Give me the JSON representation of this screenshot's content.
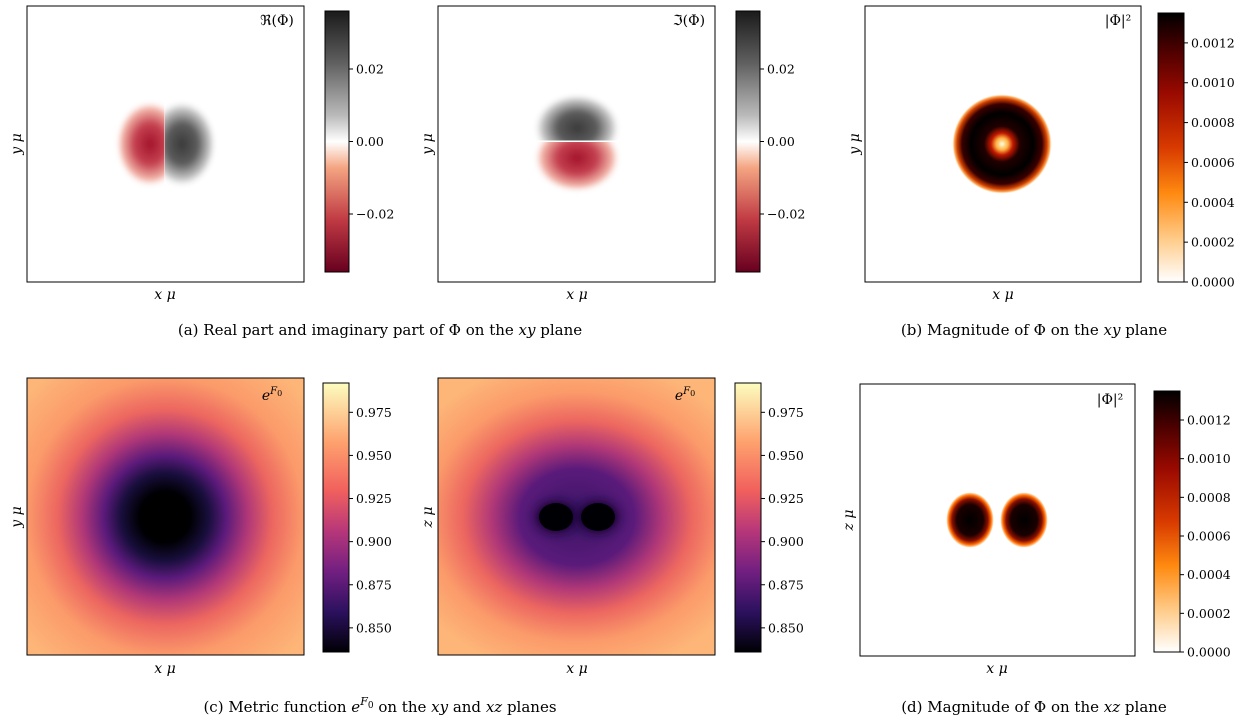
{
  "captions": {
    "a": "(a)  Real part and imaginary part of Φ on the xy plane",
    "b": "(b)  Magnitude of Φ on the xy plane",
    "c": "(c)  Metric function e^F0 on the xy and xz planes",
    "d": "(d)  Magnitude of Φ on the xz plane"
  },
  "chart_data": [
    {
      "type": "heatmap",
      "panel_label": "ℜ(Φ)",
      "xlabel": "x μ",
      "ylabel": "y μ",
      "colormap": "RdGy",
      "colorbar_range": [
        -0.036,
        0.036
      ],
      "colorbar_ticks": [
        -0.02,
        0.0,
        0.02
      ],
      "colorbar_tick_labels": [
        "−0.02",
        "0.00",
        "0.02"
      ],
      "field": "real_phi_xy"
    },
    {
      "type": "heatmap",
      "panel_label": "ℑ(Φ)",
      "xlabel": "x μ",
      "ylabel": "y μ",
      "colormap": "RdGy",
      "colorbar_range": [
        -0.036,
        0.036
      ],
      "colorbar_ticks": [
        -0.02,
        0.0,
        0.02
      ],
      "colorbar_tick_labels": [
        "−0.02",
        "0.00",
        "0.02"
      ],
      "field": "imag_phi_xy"
    },
    {
      "type": "heatmap",
      "panel_label": "|Φ|²",
      "xlabel": "x μ",
      "ylabel": "y μ",
      "colormap": "gist_heat_r",
      "colorbar_range": [
        0,
        0.00135
      ],
      "colorbar_ticks": [
        0.0,
        0.0002,
        0.0004,
        0.0006,
        0.0008,
        0.001,
        0.0012
      ],
      "colorbar_tick_labels": [
        "0.0000",
        "0.0002",
        "0.0004",
        "0.0006",
        "0.0008",
        "0.0010",
        "0.0012"
      ],
      "field": "mag_phi_xy"
    },
    {
      "type": "heatmap",
      "panel_label": "e^F0",
      "xlabel": "x μ",
      "ylabel": "y μ",
      "colormap": "magma",
      "colorbar_range": [
        0.836,
        0.992
      ],
      "colorbar_ticks": [
        0.85,
        0.875,
        0.9,
        0.925,
        0.95,
        0.975
      ],
      "colorbar_tick_labels": [
        "0.850",
        "0.875",
        "0.900",
        "0.925",
        "0.950",
        "0.975"
      ],
      "field": "metric_xy"
    },
    {
      "type": "heatmap",
      "panel_label": "e^F0",
      "xlabel": "x μ",
      "ylabel": "z μ",
      "colormap": "magma",
      "colorbar_range": [
        0.836,
        0.992
      ],
      "colorbar_ticks": [
        0.85,
        0.875,
        0.9,
        0.925,
        0.95,
        0.975
      ],
      "colorbar_tick_labels": [
        "0.850",
        "0.875",
        "0.900",
        "0.925",
        "0.950",
        "0.975"
      ],
      "field": "metric_xz"
    },
    {
      "type": "heatmap",
      "panel_label": "|Φ|²",
      "xlabel": "x μ",
      "ylabel": "z μ",
      "colormap": "gist_heat_r",
      "colorbar_range": [
        0,
        0.00135
      ],
      "colorbar_ticks": [
        0.0,
        0.0002,
        0.0004,
        0.0006,
        0.0008,
        0.001,
        0.0012
      ],
      "colorbar_tick_labels": [
        "0.0000",
        "0.0002",
        "0.0004",
        "0.0006",
        "0.0008",
        "0.0010",
        "0.0012"
      ],
      "field": "mag_phi_xz"
    }
  ]
}
